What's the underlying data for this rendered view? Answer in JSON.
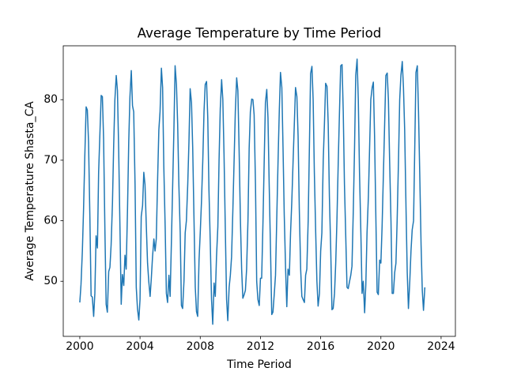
{
  "chart_data": {
    "type": "line",
    "title": "Average Temperature by Time Period",
    "x_label": "Time Period",
    "y_label": "Average Temperature Shasta_CA",
    "xlim": [
      1998.9,
      2024.95
    ],
    "ylim": [
      40.9,
      88.9
    ],
    "xticks": [
      2000,
      2004,
      2008,
      2012,
      2016,
      2020,
      2024
    ],
    "yticks": [
      50,
      60,
      70,
      80
    ],
    "x": [
      2000,
      2000.08,
      2000.17,
      2000.25,
      2000.33,
      2000.42,
      2000.5,
      2000.58,
      2000.67,
      2000.75,
      2000.83,
      2000.92,
      2001,
      2001.08,
      2001.17,
      2001.25,
      2001.33,
      2001.42,
      2001.5,
      2001.58,
      2001.67,
      2001.75,
      2001.83,
      2001.92,
      2002,
      2002.08,
      2002.17,
      2002.25,
      2002.33,
      2002.42,
      2002.5,
      2002.58,
      2002.67,
      2002.75,
      2002.83,
      2002.92,
      2003,
      2003.08,
      2003.17,
      2003.25,
      2003.33,
      2003.42,
      2003.5,
      2003.58,
      2003.67,
      2003.75,
      2003.83,
      2003.92,
      2004,
      2004.08,
      2004.17,
      2004.25,
      2004.33,
      2004.42,
      2004.5,
      2004.58,
      2004.67,
      2004.75,
      2004.83,
      2004.92,
      2005,
      2005.08,
      2005.17,
      2005.25,
      2005.33,
      2005.42,
      2005.5,
      2005.58,
      2005.67,
      2005.75,
      2005.83,
      2005.92,
      2006,
      2006.08,
      2006.17,
      2006.25,
      2006.33,
      2006.42,
      2006.5,
      2006.58,
      2006.67,
      2006.75,
      2006.83,
      2006.92,
      2007,
      2007.08,
      2007.17,
      2007.25,
      2007.33,
      2007.42,
      2007.5,
      2007.58,
      2007.67,
      2007.75,
      2007.83,
      2007.92,
      2008,
      2008.08,
      2008.17,
      2008.25,
      2008.33,
      2008.42,
      2008.5,
      2008.58,
      2008.67,
      2008.75,
      2008.83,
      2008.92,
      2009,
      2009.08,
      2009.17,
      2009.25,
      2009.33,
      2009.42,
      2009.5,
      2009.58,
      2009.67,
      2009.75,
      2009.83,
      2009.92,
      2010,
      2010.08,
      2010.17,
      2010.25,
      2010.33,
      2010.42,
      2010.5,
      2010.58,
      2010.67,
      2010.75,
      2010.83,
      2010.92,
      2011,
      2011.08,
      2011.17,
      2011.25,
      2011.33,
      2011.42,
      2011.5,
      2011.58,
      2011.67,
      2011.75,
      2011.83,
      2011.92,
      2012,
      2012.08,
      2012.17,
      2012.25,
      2012.33,
      2012.42,
      2012.5,
      2012.58,
      2012.67,
      2012.75,
      2012.83,
      2012.92,
      2013,
      2013.08,
      2013.17,
      2013.25,
      2013.33,
      2013.42,
      2013.5,
      2013.58,
      2013.67,
      2013.75,
      2013.83,
      2013.92,
      2014,
      2014.08,
      2014.17,
      2014.25,
      2014.33,
      2014.42,
      2014.5,
      2014.58,
      2014.67,
      2014.75,
      2014.83,
      2014.92,
      2015,
      2015.08,
      2015.17,
      2015.25,
      2015.33,
      2015.42,
      2015.5,
      2015.58,
      2015.67,
      2015.75,
      2015.83,
      2015.92,
      2016,
      2016.08,
      2016.17,
      2016.25,
      2016.33,
      2016.42,
      2016.5,
      2016.58,
      2016.67,
      2016.75,
      2016.83,
      2016.92,
      2017,
      2017.08,
      2017.17,
      2017.25,
      2017.33,
      2017.42,
      2017.5,
      2017.58,
      2017.67,
      2017.75,
      2017.83,
      2017.92,
      2018,
      2018.08,
      2018.17,
      2018.25,
      2018.33,
      2018.42,
      2018.5,
      2018.58,
      2018.67,
      2018.75,
      2018.83,
      2018.92,
      2019,
      2019.08,
      2019.17,
      2019.25,
      2019.33,
      2019.42,
      2019.5,
      2019.58,
      2019.67,
      2019.75,
      2019.83,
      2019.92,
      2020,
      2020.08,
      2020.17,
      2020.25,
      2020.33,
      2020.42,
      2020.5,
      2020.58,
      2020.67,
      2020.75,
      2020.83,
      2020.92,
      2021,
      2021.08,
      2021.17,
      2021.25,
      2021.33,
      2021.42,
      2021.5,
      2021.58,
      2021.67,
      2021.75,
      2021.83,
      2021.92,
      2022,
      2022.08,
      2022.17,
      2022.25,
      2022.33,
      2022.42,
      2022.5,
      2022.58,
      2022.67,
      2022.75,
      2022.83,
      2022.92
    ],
    "series": [
      {
        "color": "#1f77b4",
        "values": [
          46.5,
          49.5,
          55.0,
          62.0,
          70.5,
          78.8,
          78.3,
          73.0,
          60.5,
          47.6,
          47.4,
          44.2,
          48.0,
          57.5,
          55.5,
          68.0,
          74.0,
          80.7,
          80.5,
          73.5,
          58.0,
          46.2,
          44.9,
          51.6,
          52.3,
          56.0,
          63.0,
          72.5,
          80.0,
          84.0,
          81.5,
          72.0,
          58.5,
          46.2,
          51.1,
          49.3,
          54.3,
          52.0,
          62.0,
          73.0,
          80.5,
          84.8,
          79.0,
          78.0,
          66.0,
          49.0,
          45.5,
          43.6,
          47.0,
          60.7,
          62.5,
          68.0,
          66.0,
          59.0,
          53.0,
          50.0,
          47.5,
          50.5,
          54.0,
          57.0,
          55.0,
          57.0,
          67.0,
          75.0,
          78.0,
          85.2,
          82.0,
          69.0,
          59.0,
          48.0,
          46.5,
          51.0,
          47.5,
          56.0,
          66.0,
          75.0,
          85.6,
          82.5,
          76.0,
          66.0,
          58.0,
          46.0,
          45.5,
          50.0,
          58.0,
          60.0,
          66.0,
          73.0,
          81.8,
          79.5,
          72.0,
          61.0,
          49.0,
          45.0,
          44.2,
          53.5,
          58.0,
          63.0,
          70.0,
          78.0,
          82.5,
          83.0,
          77.0,
          65.0,
          56.0,
          47.0,
          42.9,
          49.7,
          47.5,
          54.0,
          59.0,
          70.0,
          78.5,
          83.3,
          80.0,
          71.0,
          58.0,
          47.0,
          43.5,
          49.0,
          51.0,
          54.0,
          62.0,
          70.0,
          78.0,
          83.6,
          81.5,
          72.0,
          60.0,
          52.0,
          47.2,
          47.8,
          48.5,
          52.0,
          60.0,
          72.0,
          78.0,
          80.1,
          80.0,
          77.5,
          66.0,
          50.0,
          47.0,
          46.0,
          50.5,
          50.5,
          60.0,
          70.0,
          79.5,
          81.7,
          77.0,
          66.0,
          55.0,
          44.5,
          44.9,
          48.0,
          51.0,
          60.0,
          70.0,
          78.0,
          84.5,
          82.0,
          72.0,
          61.0,
          52.0,
          45.8,
          52.0,
          51.0,
          58.0,
          63.0,
          70.0,
          76.0,
          82.0,
          80.5,
          74.0,
          62.0,
          52.0,
          47.5,
          47.0,
          46.5,
          51.0,
          52.0,
          60.0,
          72.0,
          84.3,
          85.5,
          80.0,
          68.0,
          58.0,
          50.0,
          45.9,
          48.0,
          55.0,
          58.0,
          70.0,
          76.0,
          82.7,
          82.2,
          76.0,
          64.0,
          55.0,
          45.3,
          45.5,
          48.0,
          53.0,
          60.0,
          70.0,
          78.0,
          85.6,
          85.8,
          78.0,
          66.0,
          57.0,
          49.0,
          48.8,
          50.0,
          51.0,
          52.5,
          62.0,
          72.0,
          84.0,
          86.7,
          80.0,
          68.0,
          58.0,
          48.0,
          50.0,
          44.8,
          49.5,
          58.0,
          64.0,
          72.0,
          80.0,
          82.0,
          82.9,
          74.0,
          60.0,
          48.2,
          47.8,
          53.5,
          53.0,
          59.0,
          68.0,
          76.0,
          84.0,
          84.4,
          80.0,
          70.0,
          60.0,
          48.0,
          48.0,
          51.5,
          53.0,
          60.0,
          70.0,
          80.0,
          84.0,
          86.3,
          82.0,
          75.0,
          62.0,
          51.5,
          45.5,
          50.0,
          55.0,
          58.5,
          60.0,
          72.0,
          84.5,
          85.6,
          78.0,
          68.0,
          56.0,
          48.5,
          45.2,
          49.0
        ]
      }
    ]
  }
}
